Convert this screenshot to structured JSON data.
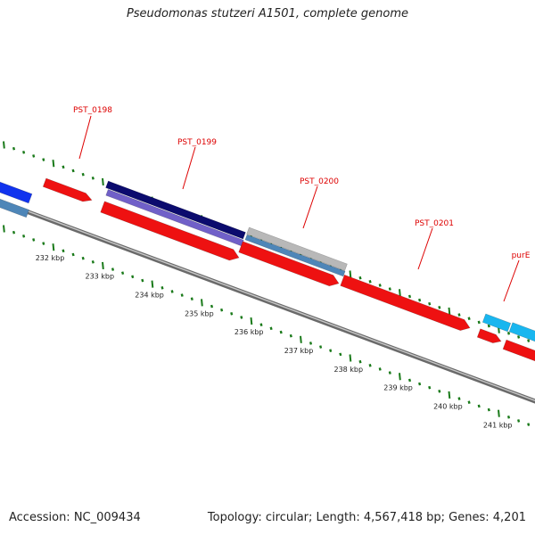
{
  "title": "Pseudomonas stutzeri A1501, complete genome",
  "footer": {
    "accession": "Accession: NC_009434",
    "summary": "Topology: circular; Length: 4,567,418 bp; Genes: 4,201"
  },
  "ruler": {
    "unit": "kbp",
    "labels": [
      "232 kbp",
      "233 kbp",
      "234 kbp",
      "235 kbp",
      "236 kbp",
      "237 kbp",
      "238 kbp",
      "239 kbp",
      "240 kbp",
      "241 kbp"
    ]
  },
  "gene_labels": [
    "PST_0198",
    "PST_0199",
    "PST_0200",
    "PST_0201",
    "purE"
  ],
  "colors": {
    "label": "#dd0000",
    "cds_red": "#ee1111",
    "navy": "#0b0b6e",
    "purple": "#7060c8",
    "blue": "#1133ee",
    "steel": "#4e86b8",
    "gray": "#b8b8b8",
    "cyan": "#19b6ef",
    "tick": "#1a7a1a",
    "backbone": "#888888"
  }
}
